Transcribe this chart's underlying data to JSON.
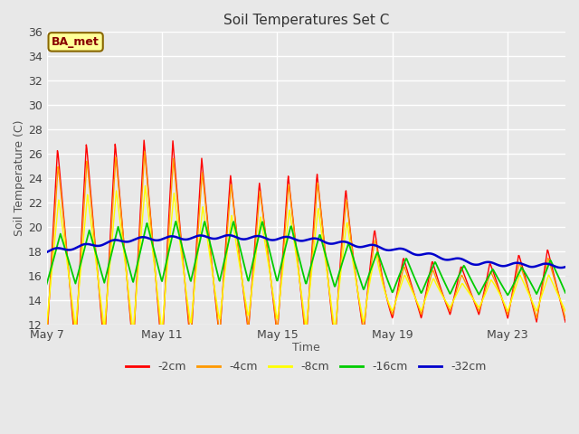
{
  "title": "Soil Temperatures Set C",
  "xlabel": "Time",
  "ylabel": "Soil Temperature (C)",
  "ylim": [
    12,
    36
  ],
  "yticks": [
    12,
    14,
    16,
    18,
    20,
    22,
    24,
    26,
    28,
    30,
    32,
    34,
    36
  ],
  "series_colors": {
    "-2cm": "#ff0000",
    "-4cm": "#ff9900",
    "-8cm": "#ffff00",
    "-16cm": "#00cc00",
    "-32cm": "#0000cc"
  },
  "background_color": "#e8e8e8",
  "plot_bg_color": "#e8e8e8",
  "annotation_text": "BA_met",
  "annotation_bg": "#ffff99",
  "annotation_border": "#886600",
  "annotation_text_color": "#880000",
  "x_tick_labels": [
    "May 7",
    "May 11",
    "May 15",
    "May 19",
    "May 23"
  ],
  "x_tick_positions": [
    0,
    4,
    8,
    12,
    16
  ],
  "n_days": 18,
  "ppd": 48
}
